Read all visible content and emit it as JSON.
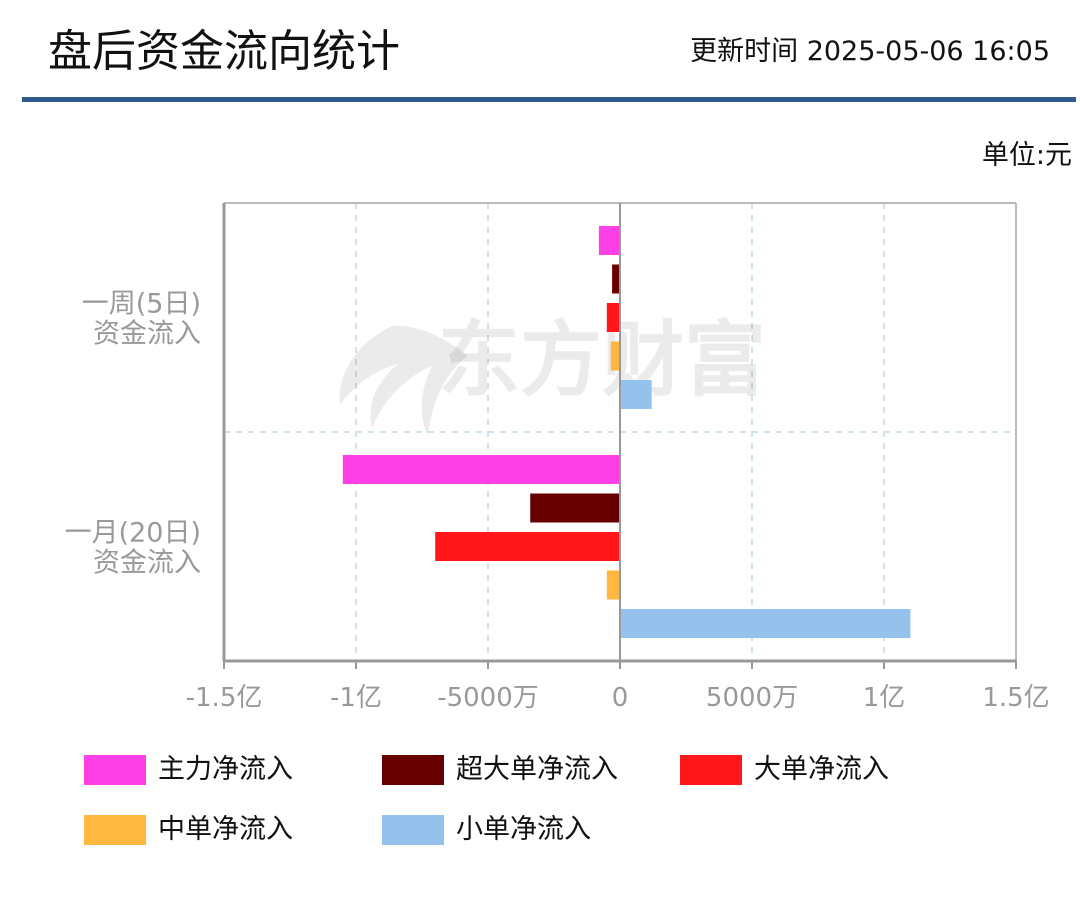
{
  "header": {
    "title": "盘后资金流向统计",
    "update_time": "更新时间 2025-05-06 16:05"
  },
  "unit_label": "单位:元",
  "watermark": {
    "text": "东方财富",
    "icon": "eastmoney-logo-icon"
  },
  "colors": {
    "header_rule": "#2e5a8e",
    "axis": "#999999",
    "gridline": "#cfe3ef",
    "tick_text": "#999999"
  },
  "chart_data": {
    "type": "bar",
    "orientation": "horizontal",
    "categories": [
      "一周(5日)\n资金流入",
      "一月(20日)\n资金流入"
    ],
    "xlim": [
      -150000000,
      150000000
    ],
    "x_ticks": [
      -150000000,
      -100000000,
      -50000000,
      0,
      50000000,
      100000000,
      150000000
    ],
    "x_tick_labels": [
      "-1.5亿",
      "-1亿",
      "-5000万",
      "0",
      "5000万",
      "1亿",
      "1.5亿"
    ],
    "grid": true,
    "legend_position": "bottom",
    "series": [
      {
        "name": "主力净流入",
        "color": "#ff40e6",
        "values": [
          -8000000,
          -105000000
        ]
      },
      {
        "name": "超大单净流入",
        "color": "#660000",
        "values": [
          -3000000,
          -34000000
        ]
      },
      {
        "name": "大单净流入",
        "color": "#ff171a",
        "values": [
          -5000000,
          -70000000
        ]
      },
      {
        "name": "中单净流入",
        "color": "#ffb740",
        "values": [
          -3500000,
          -5000000
        ]
      },
      {
        "name": "小单净流入",
        "color": "#94c2ec",
        "values": [
          12000000,
          110000000
        ]
      }
    ]
  }
}
